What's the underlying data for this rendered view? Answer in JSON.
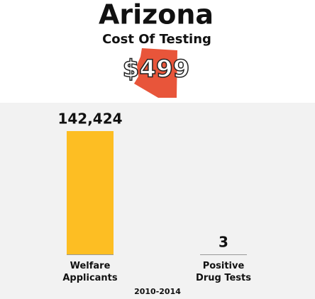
{
  "chart_data": {
    "type": "bar",
    "title": "Arizona",
    "subtitle": "Cost Of Testing",
    "cost": "$499",
    "categories": [
      "Welfare Applicants",
      "Positive Drug Tests"
    ],
    "values": [
      142424,
      3
    ],
    "value_labels": [
      "142,424",
      "3"
    ],
    "color": "#fdbe23",
    "footnote": "2010-2014"
  }
}
